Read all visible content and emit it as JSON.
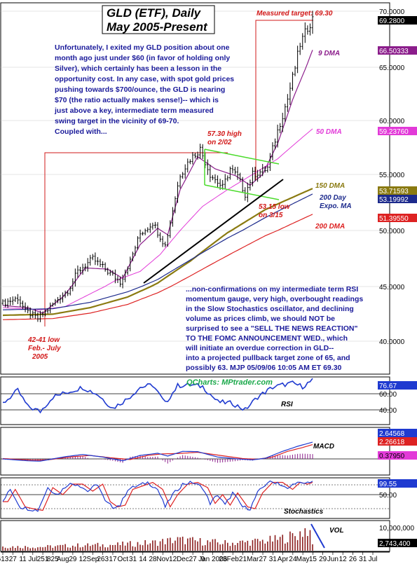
{
  "title": [
    "GLD (ETF), Daily",
    "May 2005-Present"
  ],
  "commentary_top": [
    "Unfortunately, I exited my GLD position about one",
    "month ago just under $60 (in favor of holding only",
    "Silver), which certainly has been a lesson in the",
    "opportunity cost. In any case, with spot gold prices",
    "pushing towards $700/ounce, the GLD is nearing",
    "$70 (the ratio actually makes sense!)-- which is",
    "just above a key, intermediate term measured",
    "swing target in the vicinity of 69-70.",
    "Coupled with..."
  ],
  "commentary_bottom": [
    "...non-confirmations on my intermediate term RSI",
    "momentum gauge,  very high, overbought readings",
    "in the Slow Stochastics oscillator, and declining",
    "volume as prices climb, we should NOT be",
    "surprised to see a \"SELL THE NEWS REACTION\"",
    "TO THE FOMC ANNOUNCEMENT WED., which",
    "will initiate an overdue correction in GLD--",
    "into a projected pullback target zone of 65, and",
    "possibly 63.  MJP  05/09/06 10:05 AM ET 69.30"
  ],
  "annotations": {
    "measured_target": "Measured target: 69.30",
    "high": [
      "57.30 high",
      "on 2/02"
    ],
    "low_315": [
      "53.15 low",
      "on 3/15"
    ],
    "low_4241": [
      "42-41 low",
      "Feb.- July",
      "2005"
    ],
    "ma9": "9 DMA",
    "ma50": "50 DMA",
    "ma150": "150 DMA",
    "ma200_expo": [
      "200 Day",
      "Expo. MA"
    ],
    "ma200": "200 DMA"
  },
  "right_tags": {
    "last": "69.2800",
    "ma9": "66.50333",
    "ma50": "59.23760",
    "ma150": "53.71593",
    "ma200e": "53.19992",
    "ma200": "51.39550",
    "rsi_last": "76.67",
    "macd_a": "2.64568",
    "macd_b": "2.26618",
    "macd_c": "0.37950",
    "stoch_last": "99.55"
  },
  "panels": {
    "watermark": "QCharts: MPtrader.com",
    "rsi_label": "RSI",
    "macd_label": "MACD",
    "stoch_label": "Stochastics",
    "vol_label": "VOL"
  },
  "colors": {
    "price_bars": "#000000",
    "ma9": "#8b1d8b",
    "ma50": "#e23ad8",
    "ma150": "#8a7a10",
    "ma200e": "#1c2a8c",
    "ma200": "#dd2222",
    "rsi_line": "#1f3ad0",
    "macd_line": "#1f3ad0",
    "macd_signal": "#dd2222",
    "macd_hist": "#8b1d8b",
    "stoch_k": "#1f3ad0",
    "stoch_d": "#dd2222",
    "volume": "#8b1d1d",
    "annotation_red": "#d21818",
    "channel": "#4adb2a",
    "trendline": "#000000"
  },
  "chart_data": [
    {
      "type": "line",
      "title": "GLD (ETF), Daily",
      "y_ticks": [
        "70.0000",
        "65.0000",
        "60.0000",
        "55.0000",
        "50.0000",
        "45.0000",
        "40.0000"
      ],
      "ylim": [
        37.5,
        71
      ],
      "log_scale": true,
      "x_ticks": [
        "613",
        "27",
        "11",
        "Jul",
        "251",
        "825",
        "Aug",
        "29",
        "12",
        "Sep",
        "263",
        "17",
        "Oct",
        "31",
        "14",
        "28",
        "Nov",
        "12",
        "Dec",
        "27",
        "9",
        "Jan 2006",
        "23",
        "Feb",
        "21",
        "Mar",
        "27",
        "31",
        "Apr",
        "24",
        "May",
        "15",
        "29",
        "Jun",
        "12",
        "26",
        "31",
        "Jul"
      ],
      "x_months": [
        "Jun 2005",
        "Jul",
        "Aug",
        "Sep",
        "Oct",
        "Nov",
        "Dec",
        "Jan 2006",
        "Feb",
        "Mar",
        "Apr",
        "May"
      ],
      "price_anchors": [
        [
          0,
          43.4
        ],
        [
          6,
          43.9
        ],
        [
          9,
          42.7
        ],
        [
          14,
          42.0
        ],
        [
          17,
          42.6
        ],
        [
          22,
          43.8
        ],
        [
          26,
          44.6
        ],
        [
          30,
          46.3
        ],
        [
          36,
          47.4
        ],
        [
          42,
          46.3
        ],
        [
          47,
          45.4
        ],
        [
          51,
          47.2
        ],
        [
          55,
          49.7
        ],
        [
          60,
          50.7
        ],
        [
          65,
          48.6
        ],
        [
          71,
          55.0
        ],
        [
          75,
          56.4
        ],
        [
          79,
          57.3
        ],
        [
          83,
          55.0
        ],
        [
          88,
          53.8
        ],
        [
          91,
          55.5
        ],
        [
          94,
          54.8
        ],
        [
          97,
          53.2
        ],
        [
          100,
          55.0
        ],
        [
          104,
          55.3
        ],
        [
          106,
          55.6
        ],
        [
          110,
          59.0
        ],
        [
          114,
          62.0
        ],
        [
          119,
          67.0
        ],
        [
          122,
          68.5
        ],
        [
          124,
          69.3
        ]
      ],
      "series": [
        {
          "name": "9 DMA",
          "anchors": [
            [
              0,
              43.2
            ],
            [
              10,
              43.0
            ],
            [
              16,
              42.5
            ],
            [
              24,
              44.0
            ],
            [
              33,
              46.6
            ],
            [
              42,
              46.5
            ],
            [
              48,
              45.7
            ],
            [
              55,
              48.7
            ],
            [
              62,
              50.2
            ],
            [
              66,
              49.6
            ],
            [
              71,
              53.6
            ],
            [
              78,
              56.6
            ],
            [
              85,
              55.5
            ],
            [
              93,
              54.9
            ],
            [
              99,
              54.0
            ],
            [
              104,
              55.0
            ],
            [
              110,
              57.8
            ],
            [
              116,
              61.9
            ],
            [
              124,
              66.5
            ]
          ]
        },
        {
          "name": "50 DMA",
          "anchors": [
            [
              0,
              43.0
            ],
            [
              15,
              42.8
            ],
            [
              25,
              43.1
            ],
            [
              35,
              44.3
            ],
            [
              45,
              45.5
            ],
            [
              55,
              46.3
            ],
            [
              63,
              47.8
            ],
            [
              71,
              50.0
            ],
            [
              80,
              52.1
            ],
            [
              90,
              53.6
            ],
            [
              100,
              55.0
            ],
            [
              110,
              56.4
            ],
            [
              124,
              59.2
            ]
          ]
        },
        {
          "name": "150 DMA",
          "anchors": [
            [
              0,
              42.3
            ],
            [
              20,
              42.4
            ],
            [
              35,
              43.0
            ],
            [
              50,
              44.0
            ],
            [
              62,
              45.3
            ],
            [
              75,
              47.2
            ],
            [
              90,
              49.8
            ],
            [
              105,
              51.8
            ],
            [
              124,
              53.7
            ]
          ]
        },
        {
          "name": "200 Day Expo. MA",
          "anchors": [
            [
              0,
              42.8
            ],
            [
              20,
              42.9
            ],
            [
              35,
              43.5
            ],
            [
              50,
              44.5
            ],
            [
              62,
              45.6
            ],
            [
              75,
              47.3
            ],
            [
              90,
              49.3
            ],
            [
              105,
              51.1
            ],
            [
              124,
              53.2
            ]
          ]
        },
        {
          "name": "200 DMA",
          "anchors": [
            [
              0,
              41.9
            ],
            [
              20,
              42.0
            ],
            [
              35,
              42.5
            ],
            [
              50,
              43.3
            ],
            [
              62,
              44.4
            ],
            [
              75,
              45.9
            ],
            [
              90,
              47.7
            ],
            [
              105,
              49.5
            ],
            [
              124,
              51.4
            ]
          ]
        }
      ]
    },
    {
      "type": "line",
      "title": "RSI",
      "y_ticks": [
        "60.00",
        "40.00"
      ],
      "ylim": [
        25,
        85
      ],
      "anchors": [
        [
          0,
          48
        ],
        [
          6,
          64
        ],
        [
          10,
          44
        ],
        [
          15,
          38
        ],
        [
          20,
          56
        ],
        [
          26,
          62
        ],
        [
          32,
          68
        ],
        [
          38,
          59
        ],
        [
          44,
          42
        ],
        [
          50,
          54
        ],
        [
          55,
          68
        ],
        [
          60,
          71
        ],
        [
          65,
          48
        ],
        [
          70,
          70
        ],
        [
          75,
          71
        ],
        [
          80,
          69
        ],
        [
          86,
          50
        ],
        [
          92,
          48
        ],
        [
          97,
          40
        ],
        [
          102,
          56
        ],
        [
          108,
          68
        ],
        [
          112,
          71
        ],
        [
          116,
          73
        ],
        [
          120,
          69
        ],
        [
          124,
          76.7
        ]
      ]
    },
    {
      "type": "line",
      "title": "MACD",
      "anchors_macd": [
        [
          0,
          0.0
        ],
        [
          10,
          -0.3
        ],
        [
          15,
          -0.35
        ],
        [
          25,
          0.35
        ],
        [
          32,
          0.7
        ],
        [
          40,
          0.3
        ],
        [
          48,
          -0.3
        ],
        [
          55,
          0.55
        ],
        [
          62,
          0.9
        ],
        [
          66,
          0.45
        ],
        [
          72,
          1.2
        ],
        [
          78,
          1.15
        ],
        [
          86,
          0.3
        ],
        [
          94,
          0.0
        ],
        [
          100,
          -0.15
        ],
        [
          105,
          0.1
        ],
        [
          112,
          1.2
        ],
        [
          118,
          2.0
        ],
        [
          124,
          2.65
        ]
      ],
      "anchors_signal": [
        [
          0,
          0.05
        ],
        [
          12,
          -0.2
        ],
        [
          18,
          -0.15
        ],
        [
          28,
          0.35
        ],
        [
          35,
          0.55
        ],
        [
          44,
          0.15
        ],
        [
          51,
          -0.1
        ],
        [
          58,
          0.55
        ],
        [
          64,
          0.8
        ],
        [
          70,
          0.85
        ],
        [
          78,
          1.05
        ],
        [
          88,
          0.5
        ],
        [
          96,
          0.05
        ],
        [
          102,
          -0.05
        ],
        [
          108,
          0.3
        ],
        [
          114,
          1.2
        ],
        [
          120,
          1.8
        ],
        [
          124,
          2.27
        ]
      ]
    },
    {
      "type": "line",
      "title": "Stochastics",
      "y_ticks": [
        "50.00"
      ],
      "ylim": [
        0,
        100
      ],
      "anchors": [
        [
          0,
          40
        ],
        [
          3,
          75
        ],
        [
          7,
          25
        ],
        [
          10,
          20
        ],
        [
          14,
          15
        ],
        [
          18,
          80
        ],
        [
          22,
          60
        ],
        [
          26,
          90
        ],
        [
          30,
          90
        ],
        [
          34,
          70
        ],
        [
          38,
          90
        ],
        [
          41,
          40
        ],
        [
          44,
          25
        ],
        [
          47,
          30
        ],
        [
          50,
          75
        ],
        [
          54,
          85
        ],
        [
          58,
          95
        ],
        [
          62,
          75
        ],
        [
          65,
          25
        ],
        [
          68,
          60
        ],
        [
          72,
          90
        ],
        [
          76,
          95
        ],
        [
          80,
          80
        ],
        [
          83,
          35
        ],
        [
          86,
          60
        ],
        [
          89,
          30
        ],
        [
          92,
          65
        ],
        [
          96,
          25
        ],
        [
          99,
          20
        ],
        [
          102,
          65
        ],
        [
          106,
          95
        ],
        [
          110,
          95
        ],
        [
          114,
          75
        ],
        [
          117,
          95
        ],
        [
          120,
          90
        ],
        [
          124,
          99.5
        ]
      ]
    },
    {
      "type": "bar",
      "title": "VOL",
      "y_ticks": [
        "10,000,000",
        "2,743,400"
      ],
      "ylim": [
        0,
        14000000
      ],
      "anchors": [
        [
          0,
          2000000
        ],
        [
          15,
          1800000
        ],
        [
          30,
          2500000
        ],
        [
          45,
          2800000
        ],
        [
          60,
          3800000
        ],
        [
          70,
          5200000
        ],
        [
          80,
          4300000
        ],
        [
          90,
          3600000
        ],
        [
          100,
          4200000
        ],
        [
          110,
          5300000
        ],
        [
          118,
          7500000
        ],
        [
          122,
          11000000
        ],
        [
          124,
          2743400
        ]
      ]
    }
  ]
}
